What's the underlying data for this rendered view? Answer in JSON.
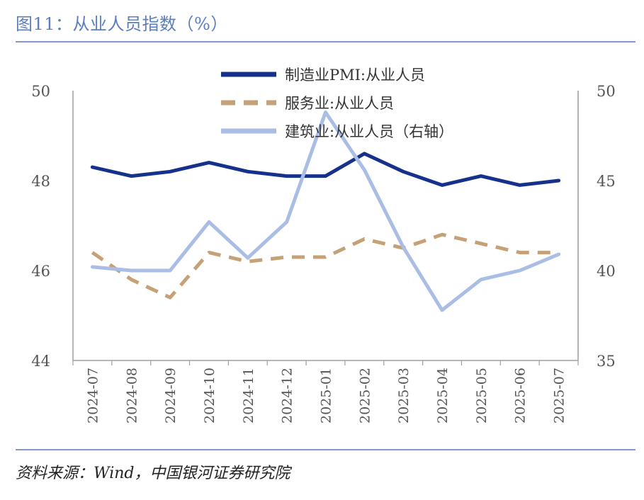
{
  "header": {
    "title": "图11：从业人员指数（%）"
  },
  "footer": {
    "source": "资料来源：Wind，中国银河证券研究院"
  },
  "colors": {
    "rule": "#8796c4",
    "title": "#5a7fbf",
    "axis": "#9aa0a6"
  },
  "chart_data": {
    "type": "line",
    "categories": [
      "2024-07",
      "2024-08",
      "2024-09",
      "2024-10",
      "2024-11",
      "2024-12",
      "2025-01",
      "2025-02",
      "2025-03",
      "2025-04",
      "2025-05",
      "2025-06",
      "2025-07"
    ],
    "y_left": {
      "ticks": [
        44,
        46,
        48,
        50
      ],
      "ylim": [
        44,
        50
      ]
    },
    "y_right": {
      "ticks": [
        35,
        40,
        45,
        50
      ],
      "ylim": [
        35,
        50
      ]
    },
    "legend_position": "top-center",
    "series": [
      {
        "name": "制造业PMI:从业人员",
        "axis": "left",
        "style": "solid",
        "color": "#15318c",
        "values": [
          48.3,
          48.1,
          48.2,
          48.4,
          48.2,
          48.1,
          48.1,
          48.6,
          48.2,
          47.9,
          48.1,
          47.9,
          48.0
        ]
      },
      {
        "name": "服务业:从业人员",
        "axis": "left",
        "style": "dashed",
        "color": "#c4a176",
        "values": [
          46.4,
          45.8,
          45.4,
          46.4,
          46.2,
          46.3,
          46.3,
          46.7,
          46.5,
          46.8,
          46.6,
          46.4,
          46.4
        ]
      },
      {
        "name": "建筑业:从业人员（右轴）",
        "axis": "right",
        "style": "solid",
        "color": "#a9bde5",
        "values": [
          40.2,
          40.0,
          40.0,
          42.7,
          40.7,
          42.7,
          48.8,
          45.6,
          41.3,
          37.8,
          39.5,
          40.0,
          40.9
        ]
      }
    ]
  }
}
